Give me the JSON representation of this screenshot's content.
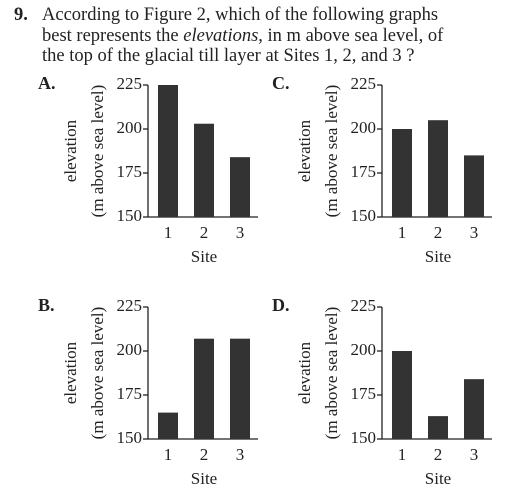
{
  "question": {
    "number": "9.",
    "line1": "According to Figure 2, which of the following graphs",
    "line2_before": "best represents the ",
    "line2_emphasis": "elevations",
    "line2_after": ", in m above sea level, of",
    "line3": "the top of the glacial till layer at Sites 1, 2, and 3 ?"
  },
  "chart_data": [
    {
      "type": "bar",
      "label": "A.",
      "categories": [
        "1",
        "2",
        "3"
      ],
      "values": [
        225,
        203,
        184
      ],
      "color": "#333333",
      "x_label": "Site",
      "y_label": [
        "elevation",
        "(m above sea level)"
      ],
      "ylim": [
        150,
        225
      ],
      "yticks": [
        150,
        175,
        200,
        225
      ]
    },
    {
      "type": "bar",
      "label": "C.",
      "categories": [
        "1",
        "2",
        "3"
      ],
      "values": [
        200,
        205,
        185
      ],
      "color": "#333333",
      "x_label": "Site",
      "y_label": [
        "elevation",
        "(m above sea level)"
      ],
      "ylim": [
        150,
        225
      ],
      "yticks": [
        150,
        175,
        200,
        225
      ]
    },
    {
      "type": "bar",
      "label": "B.",
      "categories": [
        "1",
        "2",
        "3"
      ],
      "values": [
        165,
        207,
        207
      ],
      "color": "#333333",
      "x_label": "Site",
      "y_label": [
        "elevation",
        "(m above sea level)"
      ],
      "ylim": [
        150,
        225
      ],
      "yticks": [
        150,
        175,
        200,
        225
      ]
    },
    {
      "type": "bar",
      "label": "D.",
      "categories": [
        "1",
        "2",
        "3"
      ],
      "values": [
        200,
        163,
        184
      ],
      "color": "#333333",
      "x_label": "Site",
      "y_label": [
        "elevation",
        "(m above sea level)"
      ],
      "ylim": [
        150,
        225
      ],
      "yticks": [
        150,
        175,
        200,
        225
      ]
    }
  ]
}
